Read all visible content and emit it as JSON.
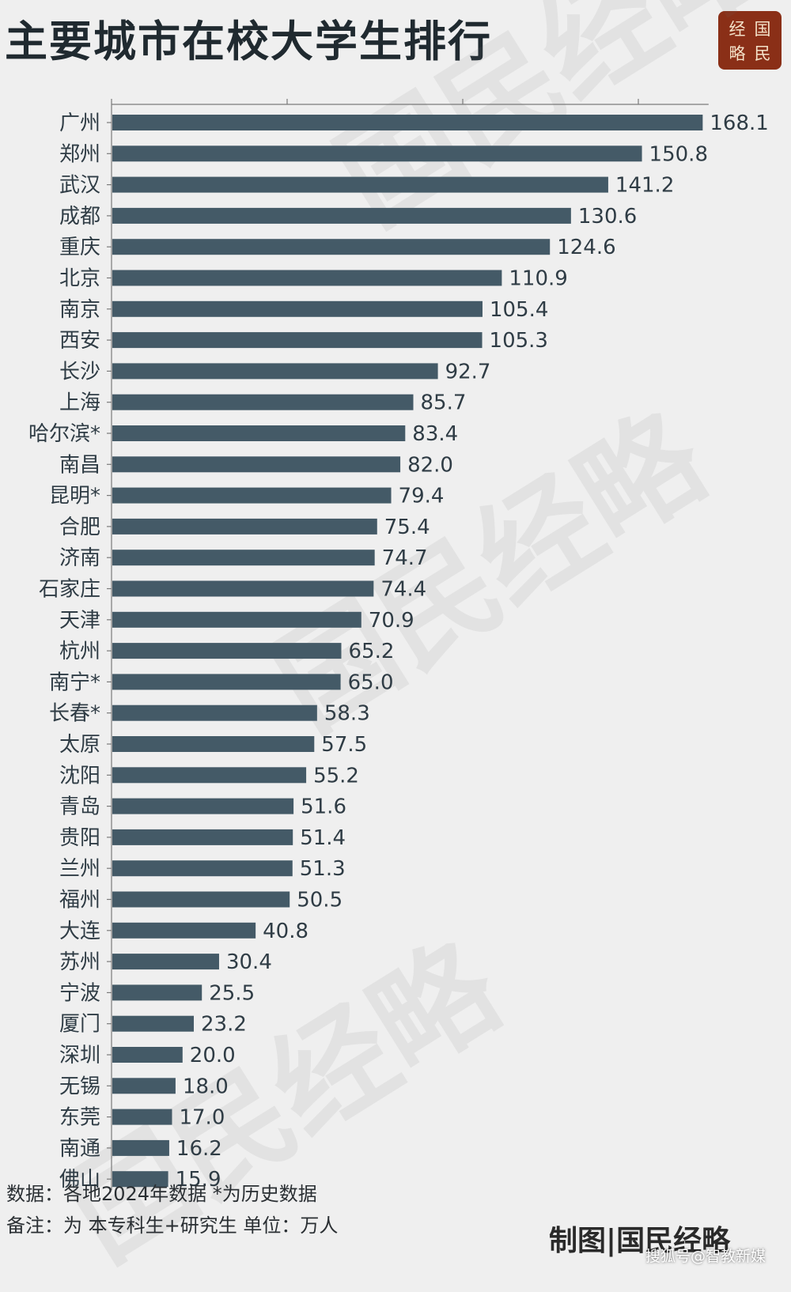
{
  "title": "主要城市在校大学生排行",
  "logo": {
    "chars": [
      "经",
      "国",
      "略",
      "民"
    ]
  },
  "watermark_text": "国民经略",
  "colors": {
    "bar": "#445a67",
    "background": "#efefef",
    "logo_bg": "#8a2f17",
    "text": "#2f3c45"
  },
  "chart_data": {
    "type": "bar",
    "orientation": "horizontal",
    "title": "主要城市在校大学生排行",
    "xlim": [
      0,
      180
    ],
    "grid": false,
    "categories": [
      "广州",
      "郑州",
      "武汉",
      "成都",
      "重庆",
      "北京",
      "南京",
      "西安",
      "长沙",
      "上海",
      "哈尔滨*",
      "南昌",
      "昆明*",
      "合肥",
      "济南",
      "石家庄",
      "天津",
      "杭州",
      "南宁*",
      "长春*",
      "太原",
      "沈阳",
      "青岛",
      "贵阳",
      "兰州",
      "福州",
      "大连",
      "苏州",
      "宁波",
      "厦门",
      "深圳",
      "无锡",
      "东莞",
      "南通",
      "佛山"
    ],
    "values": [
      168.1,
      150.8,
      141.2,
      130.6,
      124.6,
      110.9,
      105.4,
      105.3,
      92.7,
      85.7,
      83.4,
      82.0,
      79.4,
      75.4,
      74.7,
      74.4,
      70.9,
      65.2,
      65.0,
      58.3,
      57.5,
      55.2,
      51.6,
      51.4,
      51.3,
      50.5,
      40.8,
      30.4,
      25.5,
      23.2,
      20.0,
      18.0,
      17.0,
      16.2,
      15.9
    ],
    "value_labels": [
      "168.1",
      "150.8",
      "141.2",
      "130.6",
      "124.6",
      "110.9",
      "105.4",
      "105.3",
      "92.7",
      "85.7",
      "83.4",
      "82.0",
      "79.4",
      "75.4",
      "74.7",
      "74.4",
      "70.9",
      "65.2",
      "65.0",
      "58.3",
      "57.5",
      "55.2",
      "51.6",
      "51.4",
      "51.3",
      "50.5",
      "40.8",
      "30.4",
      "25.5",
      "23.2",
      "20.0",
      "18.0",
      "17.0",
      "16.2",
      "15.9"
    ]
  },
  "footer": {
    "source": "数据：各地2024年数据 *为历史数据",
    "note": "备注：为 本专科生+研究生   单位：万人",
    "maker": "制图|国民经略",
    "platform": "搜狐号@智教新媒"
  }
}
